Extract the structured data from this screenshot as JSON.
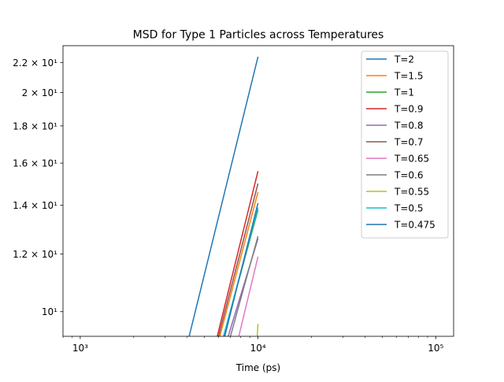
{
  "chart_data": {
    "type": "line",
    "title": "MSD for Type 1 Particles across Temperatures",
    "xlabel": "Time (ps)",
    "ylabel": "",
    "xscale": "log",
    "yscale": "log",
    "xlim": [
      800,
      126000
    ],
    "ylim": [
      9.25,
      23.2
    ],
    "x_ticks": [
      {
        "value": 1000,
        "label": "10³"
      },
      {
        "value": 10000,
        "label": "10⁴"
      },
      {
        "value": 100000,
        "label": "10⁵"
      }
    ],
    "y_ticks": [
      {
        "value": 10,
        "label": "10¹"
      },
      {
        "value": 12,
        "label": "1.2 × 10¹"
      },
      {
        "value": 14,
        "label": "1.4 × 10¹"
      },
      {
        "value": 16,
        "label": "1.6 × 10¹"
      },
      {
        "value": 18,
        "label": "1.8 × 10¹"
      },
      {
        "value": 20,
        "label": "2 × 10¹"
      },
      {
        "value": 22,
        "label": "2.2 × 10¹"
      }
    ],
    "grid": false,
    "legend_position": "top-right",
    "series": [
      {
        "name": "T=2",
        "color": "#1f77b4",
        "points": [
          [
            4100,
            9.25
          ],
          [
            10000,
            22.4
          ]
        ]
      },
      {
        "name": "T=1.5",
        "color": "#ff7f0e",
        "points": [
          [
            6100,
            9.25
          ],
          [
            10000,
            14.6
          ]
        ]
      },
      {
        "name": "T=1",
        "color": "#2ca02c",
        "points": [
          [
            6400,
            9.25
          ],
          [
            10000,
            13.8
          ]
        ]
      },
      {
        "name": "T=0.9",
        "color": "#d62728",
        "points": [
          [
            5900,
            9.25
          ],
          [
            10000,
            15.6
          ]
        ]
      },
      {
        "name": "T=0.8",
        "color": "#9467bd",
        "points": [
          [
            6800,
            9.25
          ],
          [
            10000,
            12.6
          ]
        ]
      },
      {
        "name": "T=0.7",
        "color": "#8c564b",
        "points": [
          [
            6000,
            9.25
          ],
          [
            10000,
            15.0
          ]
        ]
      },
      {
        "name": "T=0.65",
        "color": "#e377c2",
        "points": [
          [
            7800,
            9.25
          ],
          [
            10000,
            11.9
          ]
        ]
      },
      {
        "name": "T=0.6",
        "color": "#7f7f7f",
        "points": [
          [
            7000,
            9.25
          ],
          [
            10000,
            12.7
          ]
        ]
      },
      {
        "name": "T=0.55",
        "color": "#bcbd22",
        "points": [
          [
            9900,
            9.25
          ],
          [
            10000,
            9.62
          ]
        ]
      },
      {
        "name": "T=0.5",
        "color": "#17becf",
        "points": [
          [
            6400,
            9.25
          ],
          [
            10000,
            13.9
          ]
        ]
      },
      {
        "name": "T=0.475",
        "color": "#1f77b4",
        "points": [
          [
            6500,
            9.25
          ],
          [
            10000,
            14.1
          ]
        ]
      }
    ]
  }
}
